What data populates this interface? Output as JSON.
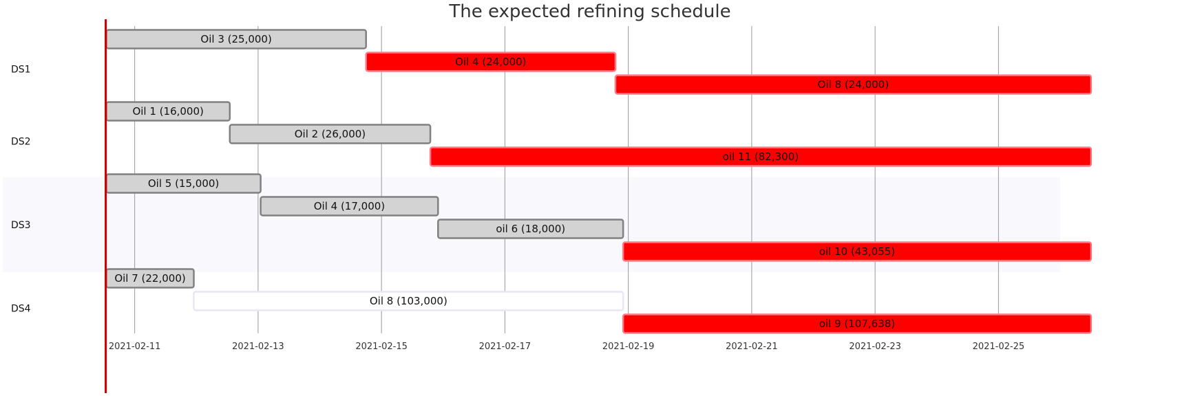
{
  "chart_data": {
    "type": "timeline",
    "title": "The expected refining schedule",
    "xlim": [
      "2021-02-10",
      "2021-02-26"
    ],
    "x_ticks": [
      "2021-02-11",
      "2021-02-13",
      "2021-02-15",
      "2021-02-17",
      "2021-02-19",
      "2021-02-21",
      "2021-02-23",
      "2021-02-25"
    ],
    "grid": true,
    "colors": {
      "planned": "#d3d3d3",
      "planned_border": "#808080",
      "highlight": "#ff0000",
      "highlight_border": "#ff7a85",
      "pending": "#ffffff",
      "pending_border": "#e6e6f5",
      "current_line": "#cc0000",
      "band": "#f8f8fd"
    },
    "groups": [
      {
        "label": "DS1",
        "items": [
          {
            "label": "Oil 3 (25,000)",
            "start": "2021-02-10 13:00",
            "end": "2021-02-14 18:00",
            "style": "planned"
          },
          {
            "label": "Oil 4 (24,000)",
            "start": "2021-02-14 18:00",
            "end": "2021-02-18 19:00",
            "style": "highlight"
          },
          {
            "label": "Oil 8 (24,000)",
            "start": "2021-02-18 19:00",
            "end": "2021-02-26 12:00",
            "style": "highlight"
          }
        ]
      },
      {
        "label": "DS2",
        "items": [
          {
            "label": "Oil 1 (16,000)",
            "start": "2021-02-10 13:00",
            "end": "2021-02-12 13:00",
            "style": "planned"
          },
          {
            "label": "Oil 2 (26,000)",
            "start": "2021-02-12 13:00",
            "end": "2021-02-15 19:00",
            "style": "planned"
          },
          {
            "label": "oil 11 (82,300)",
            "start": "2021-02-15 19:00",
            "end": "2021-02-26 12:00",
            "style": "highlight"
          }
        ]
      },
      {
        "label": "DS3",
        "items": [
          {
            "label": "Oil 5 (15,000)",
            "start": "2021-02-10 13:00",
            "end": "2021-02-13 01:00",
            "style": "planned"
          },
          {
            "label": "Oil 4 (17,000)",
            "start": "2021-02-13 01:00",
            "end": "2021-02-15 22:00",
            "style": "planned"
          },
          {
            "label": "oil 6 (18,000)",
            "start": "2021-02-15 22:00",
            "end": "2021-02-18 22:00",
            "style": "planned"
          },
          {
            "label": "oil 10 (43,055)",
            "start": "2021-02-18 22:00",
            "end": "2021-02-26 12:00",
            "style": "highlight"
          }
        ]
      },
      {
        "label": "DS4",
        "items": [
          {
            "label": "Oil 7 (22,000)",
            "start": "2021-02-10 13:00",
            "end": "2021-02-11 23:00",
            "style": "planned"
          },
          {
            "label": "Oil 8 (103,000)",
            "start": "2021-02-11 23:00",
            "end": "2021-02-18 22:00",
            "style": "pending"
          },
          {
            "label": "oil 9 (107,638)",
            "start": "2021-02-18 22:00",
            "end": "2021-02-26 12:00",
            "style": "highlight"
          }
        ]
      }
    ],
    "current_time": "2021-02-10 13:00"
  }
}
